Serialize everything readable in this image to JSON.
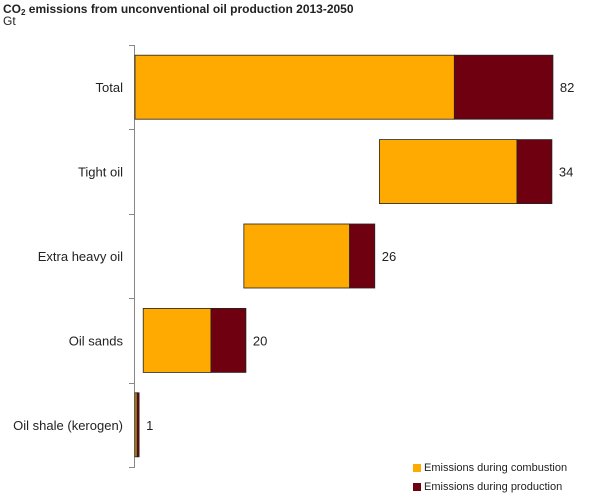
{
  "chart_data": {
    "type": "bar",
    "subtype": "waterfall-stacked-horizontal",
    "title_main": "CO",
    "title_sub": "2",
    "title_rest": " emissions from unconventional oil production 2013-2050",
    "unit": "Gt",
    "categories": [
      "Total",
      "Tight oil",
      "Extra heavy oil",
      "Oil sands",
      "Oil shale (kerogen)"
    ],
    "series": [
      {
        "name": "Emissions during combustion",
        "color": "#FFAA00",
        "values": [
          62.2,
          26.8,
          20.6,
          13.2,
          0.4
        ]
      },
      {
        "name": "Emissions during production",
        "color": "#6E0010",
        "values": [
          19.2,
          6.8,
          4.9,
          6.8,
          0.4
        ]
      }
    ],
    "totals": [
      "82",
      "34",
      "26",
      "20",
      "1"
    ],
    "offsets": [
      0,
      47.6,
      21.2,
      1.6,
      0
    ],
    "xlim": [
      0,
      82
    ],
    "legend_position": "bottom-right",
    "grid": false
  }
}
